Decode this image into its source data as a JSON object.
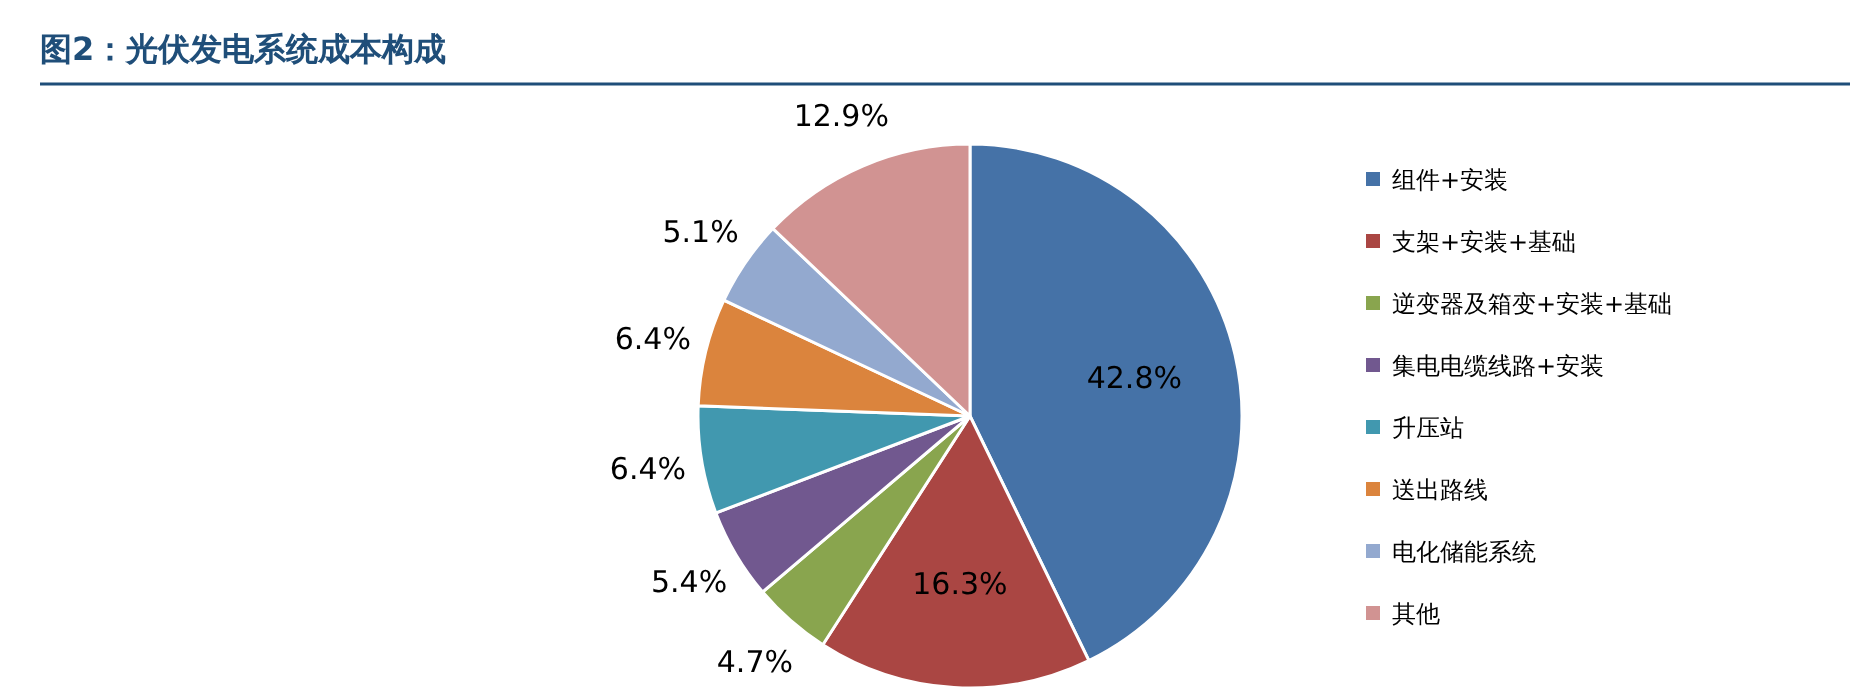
{
  "chart_data": {
    "type": "pie",
    "title": "图2：光伏发电系统成本构成",
    "categories": [
      "组件+安装",
      "支架+安装+基础",
      "逆变器及箱变+安装+基础",
      "集电电缆线路+安装",
      "升压站",
      "送出路线",
      "电化储能系统",
      "其他"
    ],
    "values": [
      42.8,
      16.3,
      4.7,
      5.4,
      6.4,
      6.4,
      5.1,
      12.9
    ],
    "colors": [
      "#4572a7",
      "#aa4643",
      "#89a54e",
      "#71588f",
      "#4198af",
      "#db843d",
      "#93a9cf",
      "#d19392"
    ],
    "value_labels": [
      "42.8%",
      "16.3%",
      "4.7%",
      "5.4%",
      "6.4%",
      "6.4%",
      "5.1%",
      "12.9%"
    ],
    "legend": "right"
  }
}
